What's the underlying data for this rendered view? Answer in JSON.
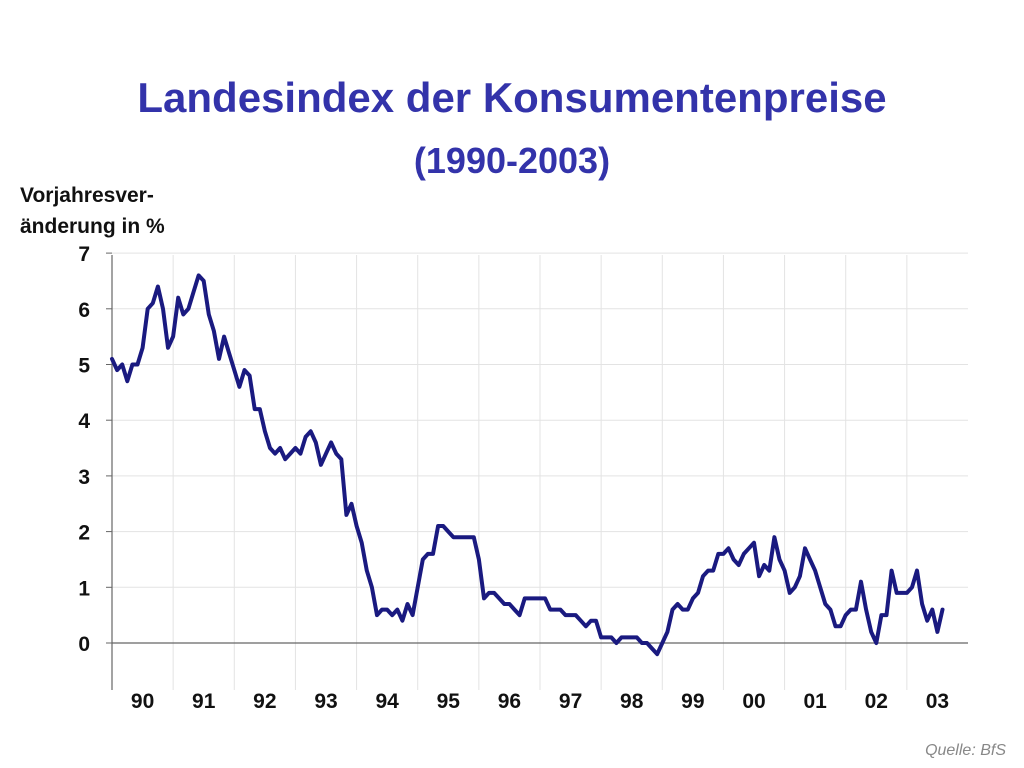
{
  "header": {
    "title": "Landesindex der Konsumentenpreise",
    "subtitle": "(1990-2003)"
  },
  "footer": {
    "source": "Quelle: BfS"
  },
  "chart_data": {
    "type": "line",
    "title": "Landesindex der Konsumentenpreise",
    "subtitle": "(1990-2003)",
    "ylabel_lines": [
      "Vorjahresver-",
      "änderung in %"
    ],
    "xlabel": "",
    "x_categories": [
      "90",
      "91",
      "92",
      "93",
      "94",
      "95",
      "96",
      "97",
      "98",
      "99",
      "00",
      "01",
      "02",
      "03"
    ],
    "ylim": [
      -0.3,
      7
    ],
    "yticks": [
      0,
      1,
      2,
      3,
      4,
      5,
      6,
      7
    ],
    "grid": "vertical-and-horizontal",
    "line_color": "#1a1a80",
    "grid_color": "#e3e3e3",
    "series": [
      {
        "frequency": "monthly",
        "start": "1990-01",
        "values": [
          5.1,
          4.9,
          5.0,
          4.7,
          5.0,
          5.0,
          5.3,
          6.0,
          6.1,
          6.4,
          6.0,
          5.3,
          5.5,
          6.2,
          5.9,
          6.0,
          6.3,
          6.6,
          6.5,
          5.9,
          5.6,
          5.1,
          5.5,
          5.2,
          4.9,
          4.6,
          4.9,
          4.8,
          4.2,
          4.2,
          3.8,
          3.5,
          3.4,
          3.5,
          3.3,
          3.4,
          3.5,
          3.4,
          3.7,
          3.8,
          3.6,
          3.2,
          3.4,
          3.6,
          3.4,
          3.3,
          2.3,
          2.5,
          2.1,
          1.8,
          1.3,
          1.0,
          0.5,
          0.6,
          0.6,
          0.5,
          0.6,
          0.4,
          0.7,
          0.5,
          1.0,
          1.5,
          1.6,
          1.6,
          2.1,
          2.1,
          2.0,
          1.9,
          1.9,
          1.9,
          1.9,
          1.9,
          1.5,
          0.8,
          0.9,
          0.9,
          0.8,
          0.7,
          0.7,
          0.6,
          0.5,
          0.8,
          0.8,
          0.8,
          0.8,
          0.8,
          0.6,
          0.6,
          0.6,
          0.5,
          0.5,
          0.5,
          0.4,
          0.3,
          0.4,
          0.4,
          0.1,
          0.1,
          0.1,
          0.0,
          0.1,
          0.1,
          0.1,
          0.1,
          0.0,
          0.0,
          -0.1,
          -0.2,
          0.0,
          0.2,
          0.6,
          0.7,
          0.6,
          0.6,
          0.8,
          0.9,
          1.2,
          1.3,
          1.3,
          1.6,
          1.6,
          1.7,
          1.5,
          1.4,
          1.6,
          1.7,
          1.8,
          1.2,
          1.4,
          1.3,
          1.9,
          1.5,
          1.3,
          0.9,
          1.0,
          1.2,
          1.7,
          1.5,
          1.3,
          1.0,
          0.7,
          0.6,
          0.3,
          0.3,
          0.5,
          0.6,
          0.6,
          1.1,
          0.6,
          0.2,
          0.0,
          0.5,
          0.5,
          1.3,
          0.9,
          0.9,
          0.9,
          1.0,
          1.3,
          0.7,
          0.4,
          0.6,
          0.2,
          0.6
        ]
      }
    ]
  }
}
